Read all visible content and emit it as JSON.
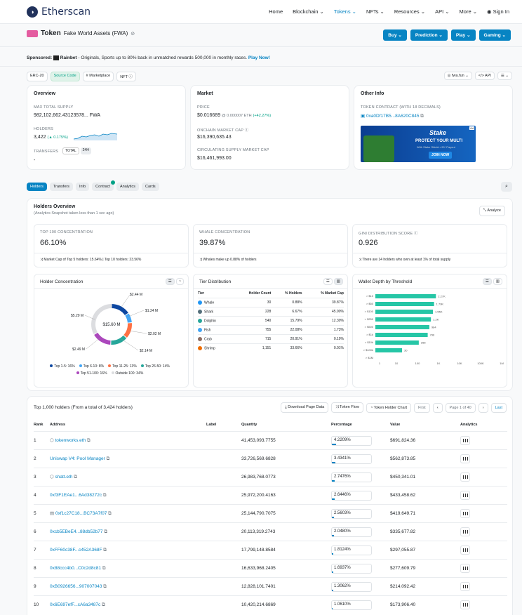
{
  "nav": {
    "brand": "Etherscan",
    "items": [
      "Home",
      "Blockchain",
      "Tokens",
      "NFTs",
      "Resources",
      "API",
      "More"
    ],
    "signin": "Sign In"
  },
  "token": {
    "label": "Token",
    "name": "Fake World Assets (FWA)"
  },
  "actions": [
    "Buy",
    "Prediction",
    "Play",
    "Gaming"
  ],
  "sponsor": {
    "label": "Sponsored:",
    "brand": "Rainbet",
    "text": "- Originals, Sports up to 80% back in unmatched rewards 500,000 in monthly races.",
    "link": "Play Now!"
  },
  "pills": [
    "ERC-20",
    "Source Code",
    "Marketplace",
    "NFT"
  ],
  "rpills": [
    "fwa.fun",
    "API"
  ],
  "overview": {
    "title": "Overview",
    "supply_label": "MAX TOTAL SUPPLY",
    "supply": "982,102,662.43123578... FWA",
    "holders_label": "HOLDERS",
    "holders": "3,422",
    "holders_change": "(▲ 0.175%)",
    "transfers_label": "TRANSFERS",
    "transfer_tabs": [
      "TOTAL",
      "24H"
    ],
    "transfers": "-"
  },
  "market": {
    "title": "Market",
    "price_label": "PRICE",
    "price": "$0.016689",
    "price_eth": "@ 0.000007 ETH",
    "price_change": "(+42.27%)",
    "onchain_label": "ONCHAIN MARKET CAP",
    "onchain": "$16,390,635.43",
    "circ_label": "CIRCULATING SUPPLY MARKET CAP",
    "circ": "$16,461,993.00"
  },
  "other": {
    "title": "Other Info",
    "contract_label": "TOKEN CONTRACT (WITH 18 DECIMALS)",
    "contract": "0xa0Df17B5...8A620C845",
    "ad_badge": "Ad",
    "ad_brand": "Stake",
    "ad_headline": "PROTECT YOUR MULTI",
    "ad_sub": "With Stake Shield • 90* Payout",
    "ad_cta": "JOIN NOW"
  },
  "tabs": [
    "Holders",
    "Transfers",
    "Info",
    "Contract",
    "Analytics",
    "Cards"
  ],
  "holders_overview": {
    "title": "Holders Overview",
    "sub": "(Analytics Snapshot taken less than 1 sec ago)",
    "analyze": "Analyze",
    "top100_label": "TOP 100 CONCENTRATION",
    "top100": "66.10%",
    "top100_note": "Market Cap of Top 5 holders: 15.64% | Top 10 holders: 23.56%",
    "whale_label": "WHALE CONCENTRATION",
    "whale": "39.87%",
    "whale_note": "Whales make up 0.88% of holders",
    "gini_label": "GINI DISTRIBUTION SCORE",
    "gini": "0.926",
    "gini_note": "There are 14 holders who own at least 1% of total supply"
  },
  "concentration": {
    "title": "Holder Concentration",
    "center": "$15.60 M",
    "labels": [
      "$2.44 M",
      "$1.24 M",
      "$2.02 M",
      "$2.14 M",
      "$2.49 M",
      "$5.29 M"
    ],
    "slices": [
      {
        "name": "Top 1-5",
        "pct": 16,
        "color": "#0d47a1"
      },
      {
        "name": "Top 6-10",
        "pct": 8,
        "color": "#42a5f5"
      },
      {
        "name": "Top 11-25",
        "pct": 13,
        "color": "#ff7043"
      },
      {
        "name": "Top 26-50",
        "pct": 14,
        "color": "#26a69a"
      },
      {
        "name": "Top 51-100",
        "pct": 16,
        "color": "#ab47bc"
      },
      {
        "name": "Outside 100",
        "pct": 34,
        "color": "#dcdde0"
      }
    ],
    "legend": [
      "Top 1-5: 16%",
      "Top 6-10: 8%",
      "Top 11-25: 13%",
      "Top 26-50: 14%",
      "Top 51-100: 16%",
      "Outside 100: 34%"
    ]
  },
  "tier": {
    "title": "Tier Distribution",
    "headers": [
      "Tier",
      "Holder Count",
      "% Holders",
      "% Market Cap"
    ],
    "rows": [
      [
        "Whale",
        "30",
        "0.88%",
        "39.87%"
      ],
      [
        "Shark",
        "228",
        "6.67%",
        "45.90%"
      ],
      [
        "Dolphin",
        "540",
        "15.79%",
        "12.30%"
      ],
      [
        "Fish",
        "755",
        "22.08%",
        "1.73%"
      ],
      [
        "Crab",
        "715",
        "20.91%",
        "0.19%"
      ],
      [
        "Shrimp",
        "1,151",
        "33.66%",
        "0.01%"
      ]
    ]
  },
  "depth": {
    "title": "Wallet Depth by Threshold",
    "labels": [
      "> $10",
      "> $50",
      "> $100",
      "> $250",
      "> $500",
      "> $1k",
      "> $10k",
      "> $100k",
      "> $1M"
    ],
    "bar_labels": [
      "2.27K",
      "1.79K",
      "1.55K",
      "1.2K",
      "984",
      "796",
      "255",
      "30",
      ""
    ],
    "values": [
      2270,
      1790,
      1550,
      1200,
      984,
      796,
      255,
      30,
      0
    ],
    "ticks": [
      "1",
      "10",
      "100",
      "1K",
      "10K",
      "100K",
      "1M"
    ]
  },
  "table": {
    "title": "Top 1,000 holders (From a total of 3,424 holders)",
    "buttons": [
      "Download Page Data",
      "Token Flow",
      "Token Holder Chart"
    ],
    "pager": [
      "First",
      "Page 1 of 40",
      "Last"
    ],
    "headers": [
      "Rank",
      "Address",
      "Label",
      "Quantity",
      "Percentage",
      "Value",
      "Analytics"
    ],
    "rows": [
      [
        "1",
        "tokenworks.eth",
        "",
        "41,453,093.7755",
        "4.2209%",
        "$691,824.36"
      ],
      [
        "2",
        "Uniswap V4: Pool Manager",
        "",
        "33,726,569.6828",
        "3.4341%",
        "$562,873.85"
      ],
      [
        "3",
        "shatt.eth",
        "",
        "26,983,768.0773",
        "2.7476%",
        "$450,341.01"
      ],
      [
        "4",
        "0xf3F1EAe1...6Ad38272c",
        "",
        "25,972,200.4163",
        "2.6446%",
        "$433,458.62"
      ],
      [
        "5",
        "0xf1c27C18...BC73A7f07",
        "",
        "25,144,790.7075",
        "2.5603%",
        "$419,649.71"
      ],
      [
        "6",
        "0xcb5EBeE4...88db52b77",
        "",
        "20,113,319.2743",
        "2.0480%",
        "$335,677.82"
      ],
      [
        "7",
        "0xFF60c38F...c452A368F",
        "",
        "17,799,148.8584",
        "1.8124%",
        "$297,055.87"
      ],
      [
        "8",
        "0x88ccc4b0...C0c2d8c81",
        "",
        "16,633,968.2405",
        "1.6937%",
        "$277,609.79"
      ],
      [
        "9",
        "0xB0926656...907007043",
        "",
        "12,828,101.7401",
        "1.3062%",
        "$214,092.42"
      ],
      [
        "10",
        "0x6E697efF...cA6a3487c",
        "",
        "10,420,214.6869",
        "1.0610%",
        "$173,906.40"
      ]
    ]
  }
}
